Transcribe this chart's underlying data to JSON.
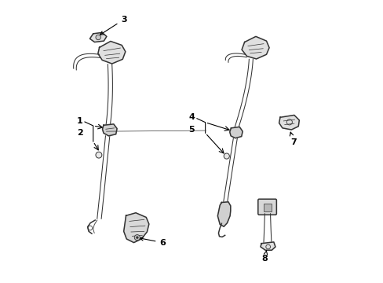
{
  "bg_color": "#ffffff",
  "line_color": "#333333",
  "text_color": "#000000",
  "figsize": [
    4.89,
    3.6
  ],
  "dpi": 100
}
